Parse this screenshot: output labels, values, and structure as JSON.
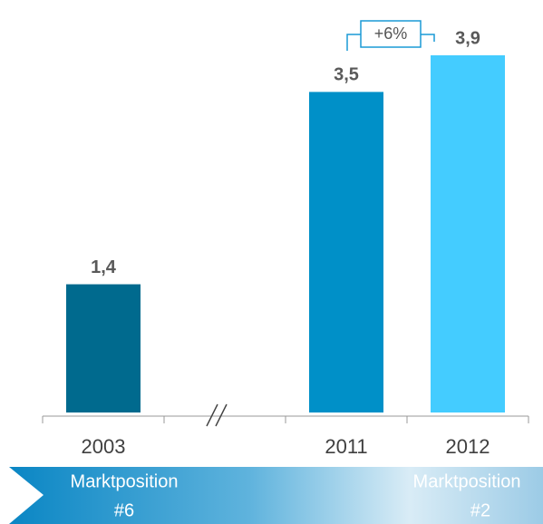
{
  "chart_data": {
    "type": "bar",
    "categories": [
      "2003",
      null,
      "2011",
      "2012"
    ],
    "values": [
      1.4,
      null,
      3.5,
      3.9
    ],
    "value_labels": [
      "1,4",
      null,
      "3,5",
      "3,9"
    ],
    "colors": [
      "#006a8e",
      null,
      "#0090c8",
      "#44ccff"
    ],
    "annotation": "+6%",
    "footer": [
      {
        "line1": "Marktposition",
        "line2": "#6"
      },
      {
        "line1": "Marktposition",
        "line2": "#2"
      }
    ]
  }
}
